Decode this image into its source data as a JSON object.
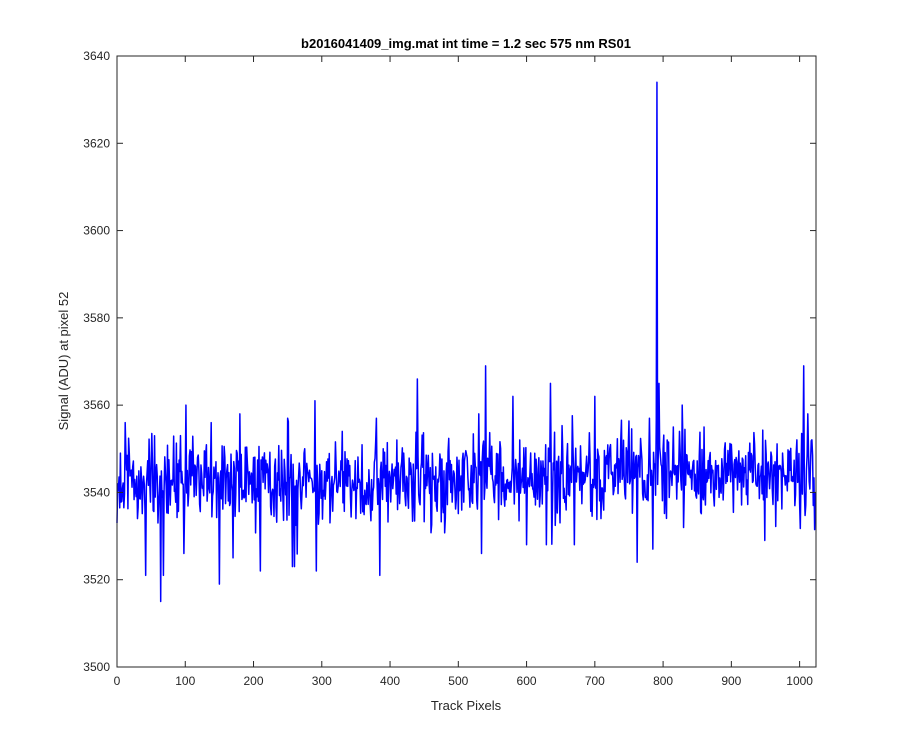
{
  "chart_data": {
    "type": "line",
    "title": "b2016041409_img.mat int time = 1.2 sec  575 nm RS01",
    "xlabel": "Track Pixels",
    "ylabel": "Signal (ADU) at pixel 52",
    "xlim": [
      0,
      1024
    ],
    "ylim": [
      3500,
      3640
    ],
    "xticks": [
      0,
      100,
      200,
      300,
      400,
      500,
      600,
      700,
      800,
      900,
      1000
    ],
    "yticks": [
      3500,
      3520,
      3540,
      3560,
      3580,
      3600,
      3620,
      3640
    ],
    "grid": false,
    "line_color": "#0000ff",
    "series": [
      {
        "count": 1024,
        "baseline": 3542,
        "spread": 4.8,
        "keypoints": [
          [
            0,
            3533
          ],
          [
            5,
            3549
          ],
          [
            12,
            3556
          ],
          [
            18,
            3549
          ],
          [
            30,
            3534
          ],
          [
            42,
            3521
          ],
          [
            55,
            3553
          ],
          [
            60,
            3533
          ],
          [
            64,
            3515
          ],
          [
            68,
            3521
          ],
          [
            98,
            3526
          ],
          [
            101,
            3560
          ],
          [
            132,
            3538
          ],
          [
            138,
            3556
          ],
          [
            150,
            3519
          ],
          [
            158,
            3548
          ],
          [
            170,
            3525
          ],
          [
            180,
            3558
          ],
          [
            200,
            3548
          ],
          [
            210,
            3522
          ],
          [
            250,
            3557
          ],
          [
            257,
            3523
          ],
          [
            260,
            3523
          ],
          [
            275,
            3550
          ],
          [
            290,
            3561
          ],
          [
            292,
            3522
          ],
          [
            330,
            3554
          ],
          [
            350,
            3534
          ],
          [
            380,
            3557
          ],
          [
            385,
            3521
          ],
          [
            390,
            3550
          ],
          [
            410,
            3552
          ],
          [
            420,
            3549
          ],
          [
            440,
            3566
          ],
          [
            466,
            3538
          ],
          [
            520,
            3538
          ],
          [
            530,
            3558
          ],
          [
            534,
            3526
          ],
          [
            540,
            3569
          ],
          [
            580,
            3562
          ],
          [
            600,
            3528
          ],
          [
            629,
            3528
          ],
          [
            635,
            3565
          ],
          [
            650,
            3547
          ],
          [
            670,
            3528
          ],
          [
            700,
            3562
          ],
          [
            738,
            3552
          ],
          [
            762,
            3524
          ],
          [
            780,
            3557
          ],
          [
            785,
            3527
          ],
          [
            791,
            3634
          ],
          [
            794,
            3565
          ],
          [
            800,
            3550
          ],
          [
            815,
            3555
          ],
          [
            828,
            3560
          ],
          [
            860,
            3555
          ],
          [
            880,
            3546
          ],
          [
            900,
            3551
          ],
          [
            907,
            3548
          ],
          [
            944,
            3546
          ],
          [
            949,
            3529
          ],
          [
            955,
            3544
          ],
          [
            972,
            3546
          ],
          [
            995,
            3549
          ],
          [
            1006,
            3569
          ],
          [
            1012,
            3558
          ],
          [
            1020,
            3537
          ],
          [
            1023,
            3540
          ]
        ]
      }
    ]
  }
}
